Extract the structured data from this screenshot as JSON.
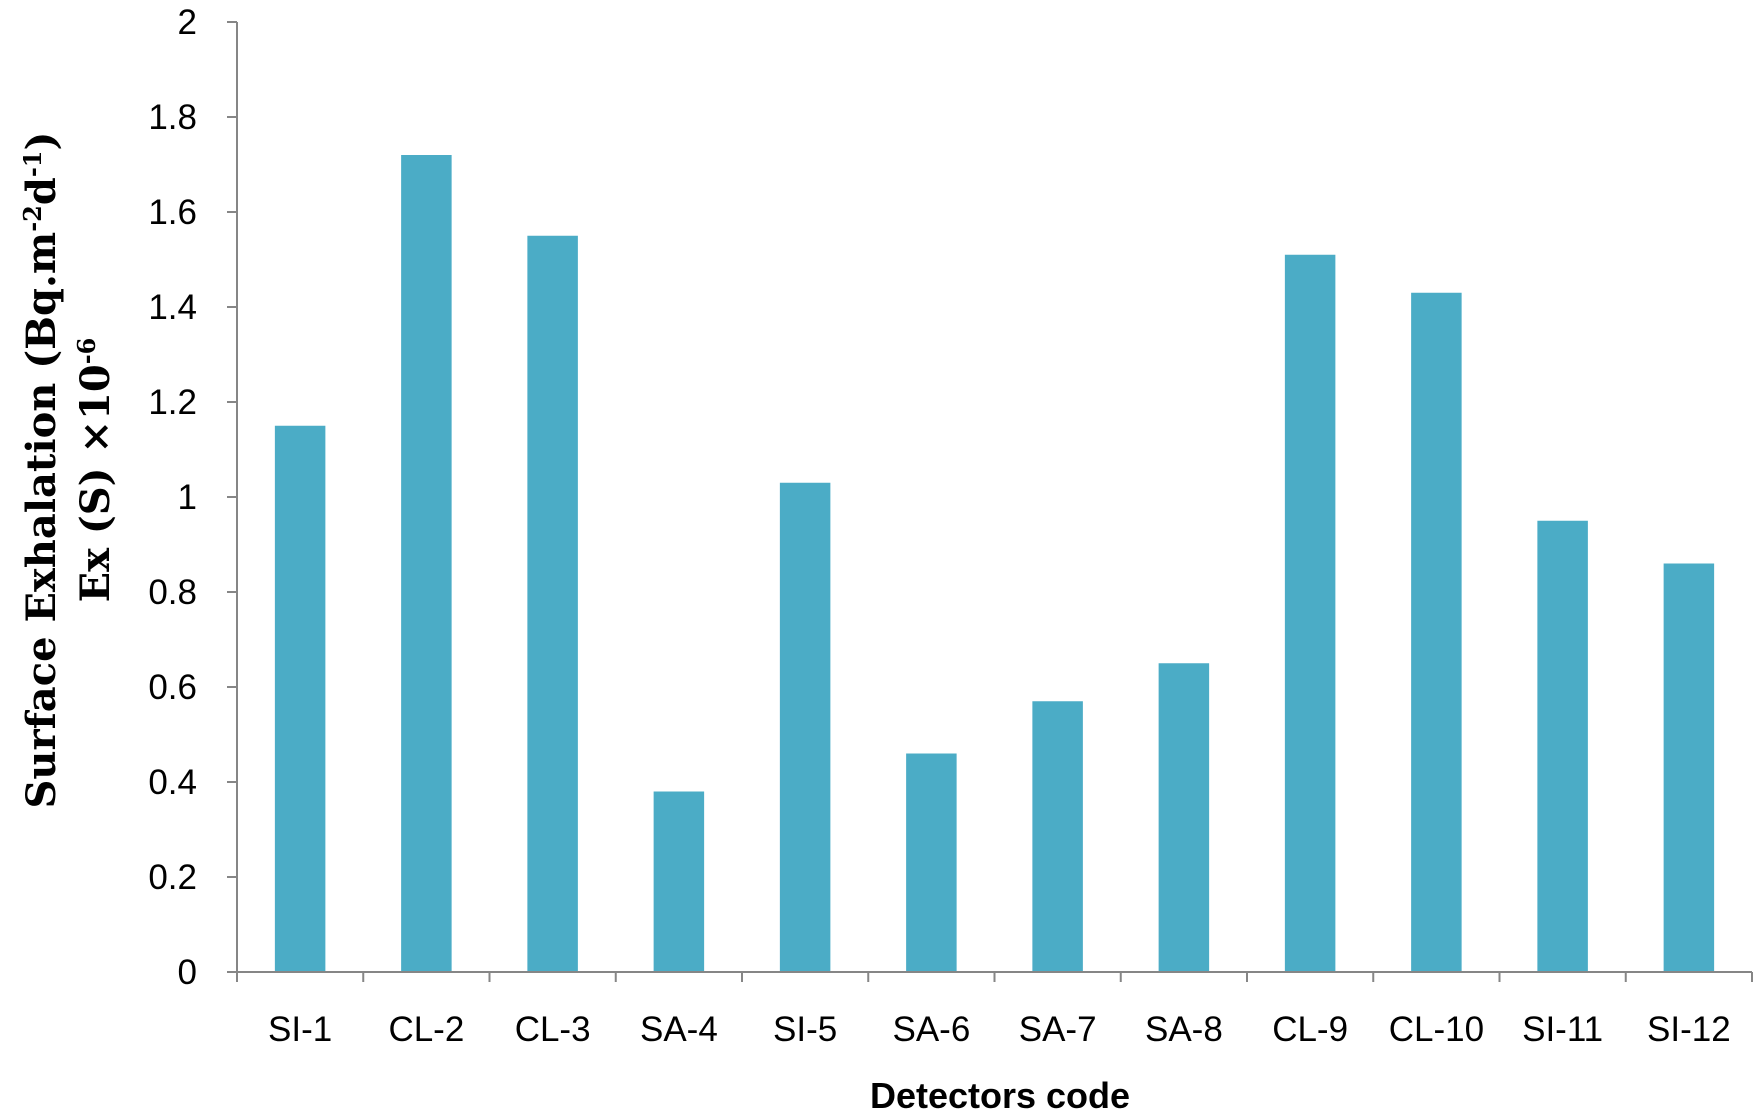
{
  "chart_data": {
    "type": "bar",
    "categories": [
      "SI-1",
      "CL-2",
      "CL-3",
      "SA-4",
      "SI-5",
      "SA-6",
      "SA-7",
      "SA-8",
      "CL-9",
      "CL-10",
      "SI-11",
      "SI-12"
    ],
    "values": [
      1.15,
      1.72,
      1.55,
      0.38,
      1.03,
      0.46,
      0.57,
      0.65,
      1.51,
      1.43,
      0.95,
      0.86
    ],
    "xlabel": "Detectors code",
    "ylabel_line1": {
      "main": "Surface Exhalation (Bq.m",
      "sup1": "-2",
      "mid": "d",
      "sup2": "-1",
      "end": ")"
    },
    "ylabel_line2": {
      "main": "Ex (S) ×10",
      "sup": "-6"
    },
    "ylim": [
      0,
      2
    ],
    "yticks": [
      "0",
      "0.2",
      "0.4",
      "0.6",
      "0.8",
      "1",
      "1.2",
      "1.4",
      "1.6",
      "1.8",
      "2"
    ],
    "bar_color": "#4bacc6",
    "grid": false,
    "legend": "none"
  }
}
